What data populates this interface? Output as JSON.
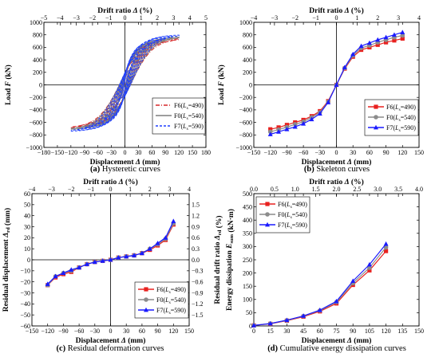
{
  "chart_data": [
    {
      "type": "line",
      "caption_tag": "(a)",
      "caption_text": " Hysteretic curves",
      "xlabel": "Displacement Δ (mm)",
      "ylabel": "Load F (kN)",
      "x2label": "Drift ratio Δ (%)",
      "xlim": [
        -180,
        180
      ],
      "ylim": [
        -1000,
        1000
      ],
      "x_ticks": [
        "−180",
        "−150",
        "−120",
        "−90",
        "−60",
        "−30",
        "0",
        "30",
        "60",
        "90",
        "120",
        "150",
        "180"
      ],
      "y_ticks": [
        "−1000",
        "−800",
        "−600",
        "−400",
        "−200",
        "0",
        "200",
        "400",
        "600",
        "800",
        "1000"
      ],
      "x2_ticks": [
        "−5",
        "−4",
        "−3",
        "−2",
        "−1",
        "0",
        "1",
        "2",
        "3",
        "4",
        "5"
      ],
      "grid": false,
      "legend_position": "lower-right",
      "series": [
        {
          "name": "F6(Ls=490)",
          "label_main": "F6(",
          "label_sub": "s",
          "label_rest": "=490)",
          "color": "#d62728",
          "style": "dashdot"
        },
        {
          "name": "F0(Ls=540)",
          "label_main": "F0(",
          "label_sub": "s",
          "label_rest": "=540)",
          "color": "#7f7f7f",
          "style": "solid"
        },
        {
          "name": "F7(Ls=590)",
          "label_main": "F7(",
          "label_sub": "s",
          "label_rest": "=590)",
          "color": "#1f3fff",
          "style": "dashed"
        }
      ],
      "loops_amplitude_mm": [
        15,
        30,
        45,
        60,
        75,
        90,
        105,
        120
      ],
      "envelope": {
        "x": [
          15,
          30,
          45,
          60,
          75,
          90,
          105,
          120
        ],
        "F6": [
          250,
          420,
          560,
          650,
          700,
          740,
          760,
          780
        ],
        "F0": [
          260,
          440,
          590,
          680,
          730,
          770,
          795,
          810
        ],
        "F7": [
          270,
          460,
          620,
          710,
          760,
          800,
          830,
          845
        ]
      }
    },
    {
      "type": "line",
      "caption_tag": "(b)",
      "caption_text": " Skeleton curves",
      "xlabel": "Displacement Δ (mm)",
      "ylabel": "Load F (kN)",
      "x2label": "Drift ratio Δ (%)",
      "xlim": [
        -150,
        150
      ],
      "ylim": [
        -1000,
        1000
      ],
      "x_ticks": [
        "−150",
        "−120",
        "−90",
        "−60",
        "−30",
        "0",
        "30",
        "60",
        "90",
        "120",
        "150"
      ],
      "y_ticks": [
        "−1000",
        "−800",
        "−600",
        "−400",
        "−200",
        "0",
        "200",
        "400",
        "600",
        "800",
        "1000"
      ],
      "x2_ticks": [
        "−4",
        "−3",
        "−2",
        "−1",
        "0",
        "1",
        "2",
        "3",
        "4"
      ],
      "grid": false,
      "legend_position": "lower-right",
      "x": [
        -120,
        -105,
        -90,
        -75,
        -60,
        -45,
        -30,
        -15,
        0,
        15,
        30,
        45,
        60,
        75,
        90,
        105,
        120
      ],
      "series": [
        {
          "name": "F6(Ls=490)",
          "label_main": "F6(",
          "label_sub": "s",
          "label_rest": "=490)",
          "color": "#e8211f",
          "marker": "square",
          "values": [
            -710,
            -680,
            -640,
            -600,
            -560,
            -500,
            -420,
            -260,
            0,
            260,
            450,
            560,
            600,
            640,
            680,
            710,
            740
          ]
        },
        {
          "name": "F0(Ls=540)",
          "label_main": "F0(",
          "label_sub": "s",
          "label_rest": "=540)",
          "color": "#8c8c8c",
          "marker": "circle",
          "values": [
            -750,
            -715,
            -675,
            -630,
            -590,
            -520,
            -440,
            -270,
            0,
            270,
            470,
            590,
            630,
            680,
            720,
            760,
            790
          ]
        },
        {
          "name": "F7(Ls=590)",
          "label_main": "F7(",
          "label_sub": "s",
          "label_rest": "=590)",
          "color": "#1a1aff",
          "marker": "triangle",
          "values": [
            -790,
            -750,
            -710,
            -670,
            -620,
            -550,
            -460,
            -280,
            0,
            280,
            490,
            620,
            670,
            720,
            760,
            800,
            840
          ]
        }
      ]
    },
    {
      "type": "line",
      "caption_tag": "(c)",
      "caption_text": " Residual deformation curves",
      "xlabel": "Displacement Δ (mm)",
      "ylabel": "Residual displacement Δrd (mm)",
      "y2label": "Residual drift ratio Δrd (%)",
      "x2label": "Drift ratio Δ (%)",
      "xlim": [
        -150,
        150
      ],
      "ylim": [
        -60,
        60
      ],
      "x_ticks": [
        "−150",
        "−120",
        "−90",
        "−60",
        "−30",
        "0",
        "30",
        "60",
        "90",
        "120",
        "150"
      ],
      "y_ticks": [
        "−60",
        "−50",
        "−40",
        "−30",
        "−20",
        "−10",
        "0",
        "10",
        "20",
        "30",
        "40",
        "50",
        "60"
      ],
      "y2_ticks": [
        "−1.5",
        "−1.2",
        "−0.9",
        "−0.6",
        "−0.3",
        "0.0",
        "0.3",
        "0.6",
        "0.9",
        "1.2",
        "1.5"
      ],
      "x2_ticks": [
        "−4",
        "−3",
        "−2",
        "−1",
        "0",
        "1",
        "2",
        "3",
        "4"
      ],
      "grid": false,
      "legend_position": "lower-right",
      "x": [
        -120,
        -105,
        -90,
        -75,
        -60,
        -45,
        -30,
        -15,
        0,
        15,
        30,
        45,
        60,
        75,
        90,
        105,
        120
      ],
      "series": [
        {
          "name": "F6(Ls=490)",
          "label_main": "F6(",
          "label_sub": "s",
          "label_rest": "=490)",
          "color": "#e8211f",
          "marker": "square",
          "values": [
            -23,
            -16,
            -13,
            -11,
            -7,
            -4,
            -2,
            -1,
            0,
            2,
            3,
            4,
            6,
            9,
            13,
            18,
            32
          ]
        },
        {
          "name": "F0(Ls=540)",
          "label_main": "F0(",
          "label_sub": "s",
          "label_rest": "=540)",
          "color": "#8c8c8c",
          "marker": "circle",
          "values": [
            -23,
            -15,
            -12,
            -10,
            -7,
            -4,
            -2,
            -1,
            0,
            2,
            3,
            4,
            6,
            10,
            14,
            19,
            33
          ]
        },
        {
          "name": "F7(Ls=590)",
          "label_main": "F7(",
          "label_sub": "s",
          "label_rest": "=590)",
          "color": "#1a1aff",
          "marker": "triangle",
          "values": [
            -22,
            -15,
            -12,
            -9,
            -7,
            -4,
            -2,
            -1,
            0,
            2,
            3,
            4,
            6,
            10,
            15,
            20,
            35
          ]
        }
      ]
    },
    {
      "type": "line",
      "caption_tag": "(d)",
      "caption_text": " Cumulative energy dissipation curves",
      "xlabel": "Displacement Δ (mm)",
      "ylabel": "Energy dissipation Esum (kN·m)",
      "x2label": "Drift ratio Δ (%)",
      "xlim": [
        0,
        150
      ],
      "ylim": [
        0,
        500
      ],
      "x_ticks": [
        "0",
        "15",
        "30",
        "45",
        "60",
        "75",
        "90",
        "105",
        "120",
        "135",
        "150"
      ],
      "y_ticks": [
        "0",
        "50",
        "100",
        "150",
        "200",
        "250",
        "300",
        "350",
        "400",
        "450",
        "500"
      ],
      "x2_ticks": [
        "0.0",
        "0.5",
        "1.0",
        "1.5",
        "2.0",
        "2.5",
        "3.0",
        "3.5",
        "4.0"
      ],
      "grid": false,
      "legend_position": "top-left",
      "x": [
        0,
        15,
        30,
        45,
        60,
        75,
        90,
        105,
        120
      ],
      "series": [
        {
          "name": "F6(Ls=490)",
          "label_main": "F6(",
          "label_sub": "s",
          "label_rest": "=490)",
          "color": "#e8211f",
          "marker": "square",
          "values": [
            2,
            8,
            20,
            35,
            55,
            85,
            155,
            210,
            283
          ]
        },
        {
          "name": "F0(Ls=540)",
          "label_main": "F0(",
          "label_sub": "s",
          "label_rest": "=540)",
          "color": "#8c8c8c",
          "marker": "circle",
          "values": [
            2,
            9,
            21,
            37,
            58,
            90,
            162,
            220,
            297
          ]
        },
        {
          "name": "F7(Ls=590)",
          "label_main": "F7(",
          "label_sub": "s",
          "label_rest": "=590)",
          "color": "#1a1aff",
          "marker": "triangle",
          "values": [
            2,
            9,
            22,
            38,
            60,
            93,
            170,
            232,
            310
          ]
        }
      ]
    }
  ]
}
